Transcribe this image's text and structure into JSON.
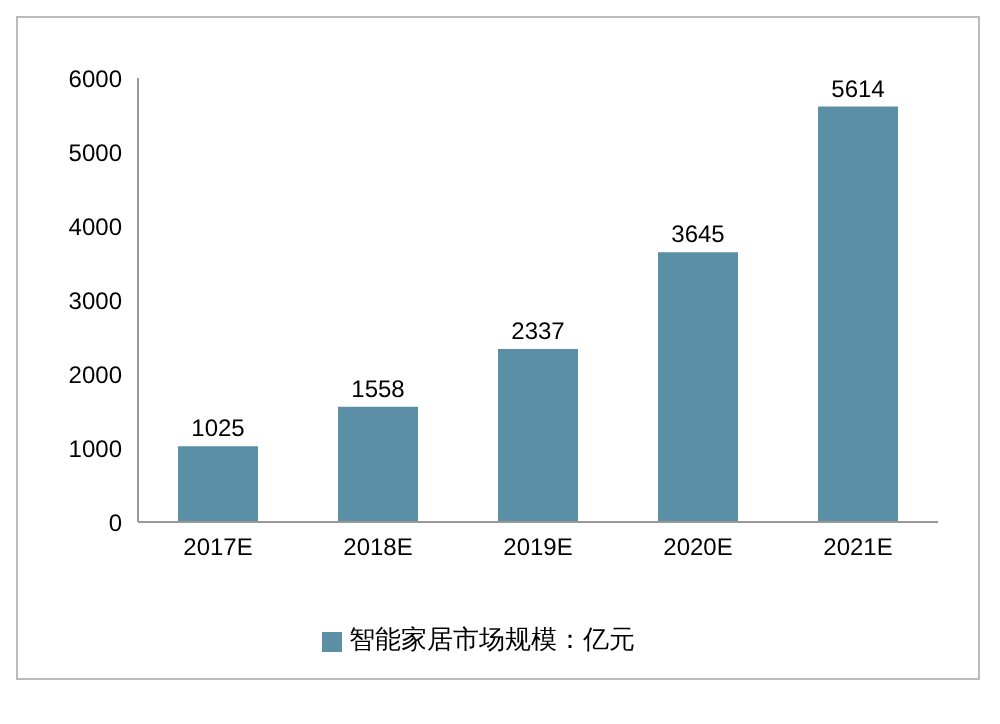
{
  "chart_data": {
    "type": "bar",
    "categories": [
      "2017E",
      "2018E",
      "2019E",
      "2020E",
      "2021E"
    ],
    "series": [
      {
        "name": "智能家居市场规模：亿元",
        "color": "#5b8fa6",
        "values": [
          1025,
          1558,
          2337,
          3645,
          5614
        ]
      }
    ],
    "ylim": [
      0,
      6000
    ],
    "yticks": [
      0,
      1000,
      2000,
      3000,
      4000,
      5000,
      6000
    ],
    "grid": false,
    "legend": "bottom",
    "data_labels": true
  }
}
